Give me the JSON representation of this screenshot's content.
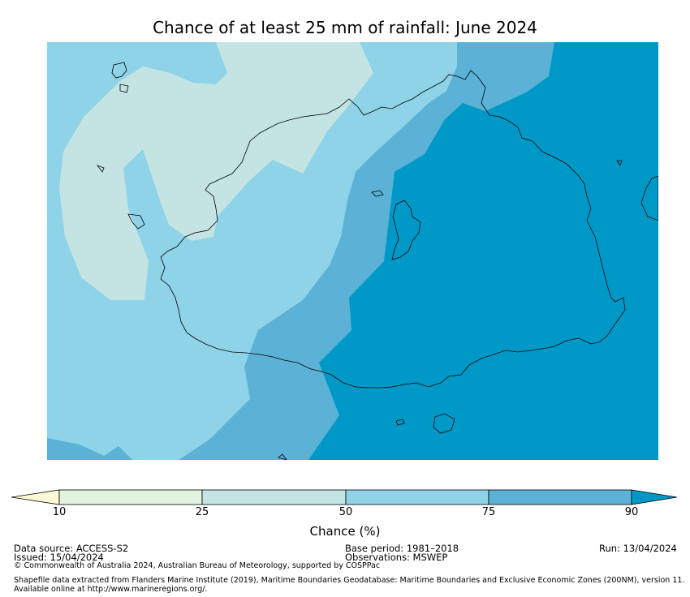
{
  "title": "Chance of at least 25 mm of rainfall: June 2024",
  "legend": {
    "label": "Chance (%)",
    "ticks": [
      "10",
      "25",
      "50",
      "75",
      "90"
    ],
    "bins": [
      {
        "range": "<10",
        "color": "#fdf8d6"
      },
      {
        "range": "10-25",
        "color": "#e0f4de"
      },
      {
        "range": "25-50",
        "color": "#c3e4e2"
      },
      {
        "range": "50-75",
        "color": "#8fd3e8"
      },
      {
        "range": "75-90",
        "color": "#5bb2d6"
      },
      {
        "range": ">90",
        "color": "#0099c7"
      }
    ]
  },
  "footer": {
    "data_source": "Data source: ACCESS-S2",
    "issued": "Issued: 15/04/2024",
    "copyright": "© Commonwealth of Australia 2024, Australian Bureau of Meteorology, supported by COSPPac",
    "base_period": "Base period: 1981–2018",
    "observations": "Observations: MSWEP",
    "run": "Run: 13/04/2024",
    "shapefile_line1": "Shapefile data extracted from Flanders Marine Institute (2019), Maritime Boundaries Geodatabase: Maritime Boundaries and Exclusive Economic Zones (200NM), version 11.",
    "shapefile_line2": "Available online at http://www.marineregions.org/."
  }
}
